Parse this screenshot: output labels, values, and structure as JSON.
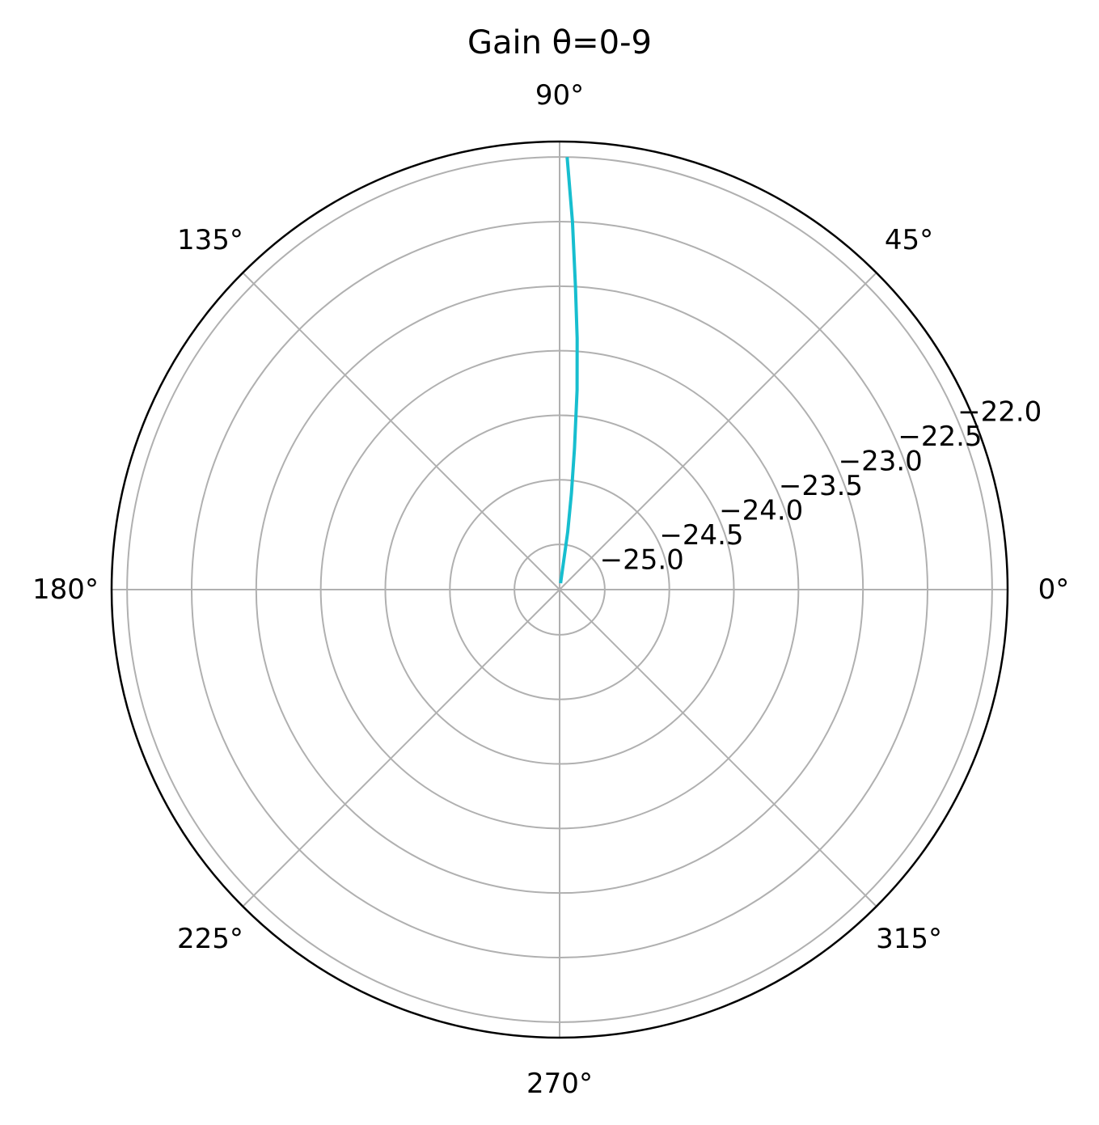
{
  "chart_data": {
    "type": "line",
    "projection": "polar",
    "title": "Gain θ=0-9",
    "theta_ticks": [
      {
        "deg": 0,
        "label": "0°"
      },
      {
        "deg": 45,
        "label": "45°"
      },
      {
        "deg": 90,
        "label": "90°"
      },
      {
        "deg": 135,
        "label": "135°"
      },
      {
        "deg": 180,
        "label": "180°"
      },
      {
        "deg": 225,
        "label": "225°"
      },
      {
        "deg": 270,
        "label": "270°"
      },
      {
        "deg": 315,
        "label": "315°"
      }
    ],
    "r_ticks": [
      {
        "value": -25.0,
        "label": "−25.0"
      },
      {
        "value": -24.5,
        "label": "−24.5"
      },
      {
        "value": -24.0,
        "label": "−24.0"
      },
      {
        "value": -23.5,
        "label": "−23.5"
      },
      {
        "value": -23.0,
        "label": "−23.0"
      },
      {
        "value": -22.5,
        "label": "−22.5"
      },
      {
        "value": -22.0,
        "label": "−22.0"
      }
    ],
    "rlim": [
      -25.35,
      -21.88
    ],
    "r_label_angle_deg": 22.5,
    "grid": true,
    "series": [
      {
        "color": "#17becf",
        "theta_deg": [
          81,
          82,
          83,
          84,
          85,
          86,
          87,
          88,
          89
        ],
        "r": [
          -25.3,
          -24.9,
          -24.6,
          -24.25,
          -23.8,
          -23.4,
          -23.0,
          -22.5,
          -22.0
        ]
      }
    ]
  }
}
